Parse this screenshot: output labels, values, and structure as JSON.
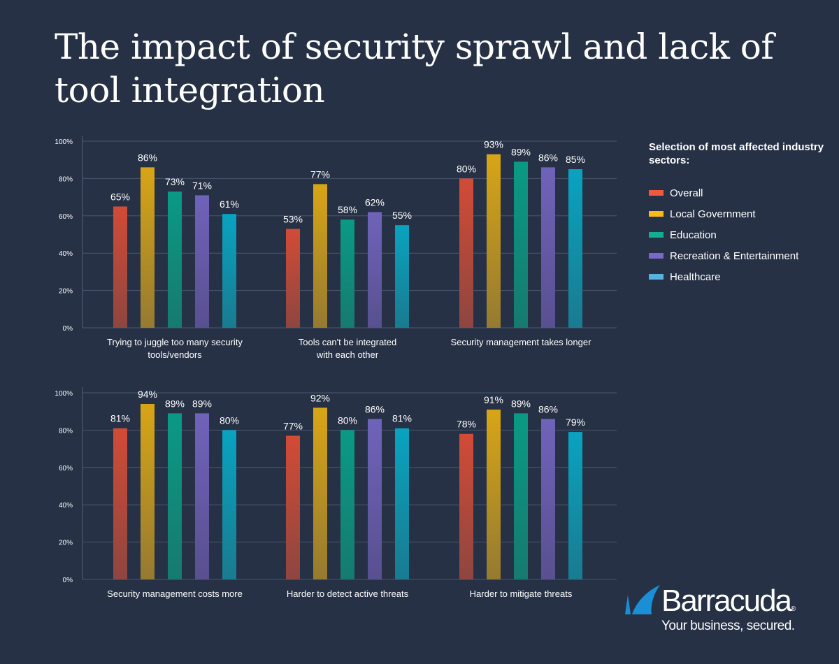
{
  "title": "The impact of security sprawl and lack of tool integration",
  "legend": {
    "title": "Selection of most affected industry sectors:",
    "items": [
      {
        "label": "Overall",
        "color": "#f05a3c"
      },
      {
        "label": "Local Government",
        "color": "#fbb917"
      },
      {
        "label": "Education",
        "color": "#12ad92"
      },
      {
        "label": "Recreation & Entertainment",
        "color": "#7a68c8"
      },
      {
        "label": "Healthcare",
        "color": "#58b2e0"
      }
    ]
  },
  "logo": {
    "name": "Barracuda",
    "tagline": "Your business, secured."
  },
  "chart_data": [
    {
      "type": "bar",
      "yticks": [
        "0%",
        "20%",
        "40%",
        "60%",
        "80%",
        "100%"
      ],
      "ylim": [
        0,
        100
      ],
      "grid": true,
      "series_names": [
        "Overall",
        "Local Government",
        "Education",
        "Recreation & Entertainment",
        "Healthcare"
      ],
      "groups": [
        {
          "label": [
            "Trying to juggle too many security",
            "tools/vendors"
          ],
          "values": [
            65,
            86,
            73,
            71,
            61
          ]
        },
        {
          "label": [
            "Tools can't be integrated",
            "with each other"
          ],
          "values": [
            53,
            77,
            58,
            62,
            55
          ]
        },
        {
          "label": [
            "Security management takes longer"
          ],
          "values": [
            80,
            93,
            89,
            86,
            85
          ]
        }
      ]
    },
    {
      "type": "bar",
      "yticks": [
        "0%",
        "20%",
        "40%",
        "60%",
        "80%",
        "100%"
      ],
      "ylim": [
        0,
        100
      ],
      "grid": true,
      "series_names": [
        "Overall",
        "Local Government",
        "Education",
        "Recreation & Entertainment",
        "Healthcare"
      ],
      "groups": [
        {
          "label": [
            "Security management costs more"
          ],
          "values": [
            81,
            94,
            89,
            89,
            80
          ]
        },
        {
          "label": [
            "Harder to detect active threats"
          ],
          "values": [
            77,
            92,
            80,
            86,
            81
          ]
        },
        {
          "label": [
            "Harder to mitigate threats"
          ],
          "values": [
            78,
            91,
            89,
            86,
            79
          ]
        }
      ]
    }
  ]
}
